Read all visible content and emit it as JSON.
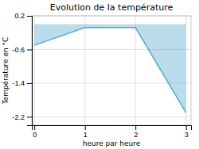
{
  "chart_data": {
    "type": "area",
    "title": "Evolution de la température",
    "xlabel": "heure par heure",
    "ylabel": "Température en °C",
    "x": [
      0,
      1,
      2,
      3
    ],
    "values": [
      -0.5,
      -0.08,
      -0.08,
      -2.1
    ],
    "color": "#55aacc",
    "xlim": [
      -0.05,
      3.1
    ],
    "ylim": [
      -2.4,
      0.2
    ],
    "xticks": [
      0,
      1,
      2,
      3
    ],
    "yticks": [
      0.2,
      -0.6,
      -1.4,
      -2.2
    ],
    "grid": true
  }
}
